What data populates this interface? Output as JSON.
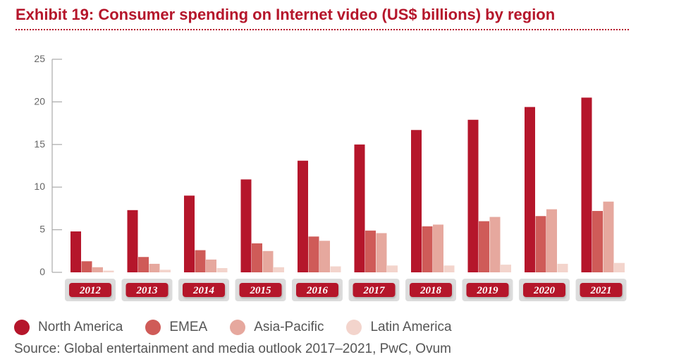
{
  "title": "Exhibit 19: Consumer spending on Internet video (US$ billions) by region",
  "source": "Source: Global entertainment and media outlook 2017–2021, PwC, Ovum",
  "chart_data": {
    "type": "bar",
    "categories": [
      "2012",
      "2013",
      "2014",
      "2015",
      "2016",
      "2017",
      "2018",
      "2019",
      "2020",
      "2021"
    ],
    "series": [
      {
        "name": "North America",
        "color": "#b5162b",
        "values": [
          4.8,
          7.3,
          9.0,
          10.9,
          13.1,
          15.0,
          16.7,
          17.9,
          19.4,
          20.5
        ]
      },
      {
        "name": "EMEA",
        "color": "#cf5b58",
        "values": [
          1.3,
          1.8,
          2.6,
          3.4,
          4.2,
          4.9,
          5.4,
          6.0,
          6.6,
          7.2
        ]
      },
      {
        "name": "Asia-Pacific",
        "color": "#e6a89e",
        "values": [
          0.6,
          1.0,
          1.5,
          2.5,
          3.7,
          4.6,
          5.6,
          6.5,
          7.4,
          8.3
        ]
      },
      {
        "name": "Latin America",
        "color": "#f3d4cc",
        "values": [
          0.2,
          0.3,
          0.5,
          0.6,
          0.7,
          0.8,
          0.8,
          0.9,
          1.0,
          1.1
        ]
      }
    ],
    "yticks": [
      0,
      5,
      10,
      15,
      20,
      25
    ],
    "ylim": [
      0,
      25
    ],
    "grid": false,
    "legend_position": "bottom"
  }
}
